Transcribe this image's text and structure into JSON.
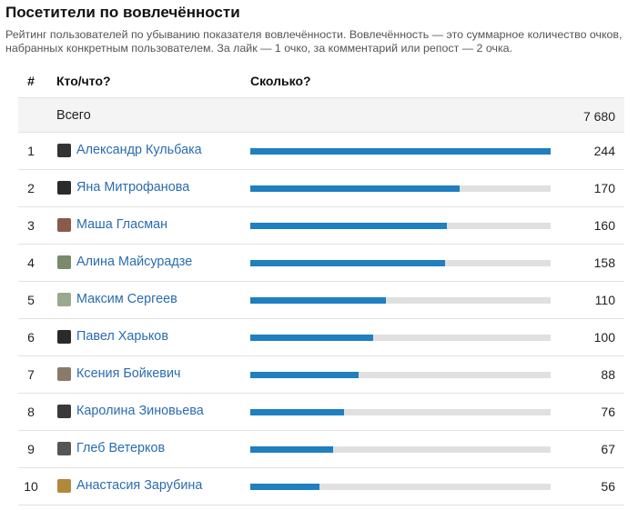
{
  "title": "Посетители по вовлечённости",
  "description": "Рейтинг пользователей по убыванию показателя вовлечённости. Вовлечённость — это суммарное количество очков, набранных конкретным пользователем. За лайк — 1 очко, за комментарий или репост — 2 очка.",
  "columns": {
    "num": "#",
    "who": "Кто/что?",
    "how": "Сколько?"
  },
  "total": {
    "label": "Всего",
    "value": "7 680"
  },
  "accent_color": "#1f7fbf",
  "track_color": "#e0e0e0",
  "link_color": "#2a6cb0",
  "max_value": 244,
  "rows": [
    {
      "rank": "1",
      "name": "Александр Кульбака",
      "value": 244,
      "avatar_color": "#333333"
    },
    {
      "rank": "2",
      "name": "Яна Митрофанова",
      "value": 170,
      "avatar_color": "#2b2b2b"
    },
    {
      "rank": "3",
      "name": "Маша Гласман",
      "value": 160,
      "avatar_color": "#8a5a4a"
    },
    {
      "rank": "4",
      "name": "Алина Майсурадзе",
      "value": 158,
      "avatar_color": "#7a8a6a"
    },
    {
      "rank": "5",
      "name": "Максим Сергеев",
      "value": 110,
      "avatar_color": "#9aa890"
    },
    {
      "rank": "6",
      "name": "Павел Харьков",
      "value": 100,
      "avatar_color": "#2a2a2a"
    },
    {
      "rank": "7",
      "name": "Ксения Бойкевич",
      "value": 88,
      "avatar_color": "#8a7a6a"
    },
    {
      "rank": "8",
      "name": "Каролина Зиновьева",
      "value": 76,
      "avatar_color": "#3a3a3a"
    },
    {
      "rank": "9",
      "name": "Глеб Ветерков",
      "value": 67,
      "avatar_color": "#555555"
    },
    {
      "rank": "10",
      "name": "Анастасия Зарубина",
      "value": 56,
      "avatar_color": "#b08a3a"
    }
  ]
}
